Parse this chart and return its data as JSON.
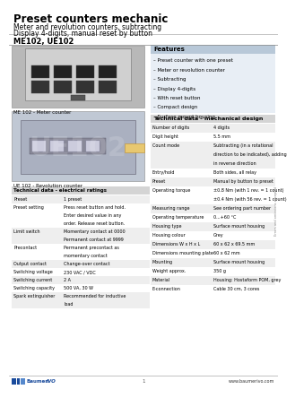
{
  "title": "Preset counters mechanic",
  "subtitle1": "Meter and revolution counters, subtracting",
  "subtitle2": "Display 4-digits, manual reset by button",
  "model_label": "ME102, UE102",
  "image_caption1": "ME 102 - Meter counter",
  "image_caption2": "UE 102 - Revolution counter",
  "features_title": "Features",
  "features": [
    "Preset counter with one preset",
    "Meter or revolution counter",
    "Subtracting",
    "Display 4-digits",
    "With reset button",
    "Compact design",
    "Surface mount housing"
  ],
  "tech_mech_title": "Technical data - mechanical design",
  "tech_mech_rows": [
    [
      "Number of digits",
      "4 digits"
    ],
    [
      "Digit height",
      "5.5 mm"
    ],
    [
      "Count mode",
      "Subtracting (in a rotational\ndirection to be indicated), adding\nin reverse direction"
    ],
    [
      "Entry/hold",
      "Both sides, all relay"
    ],
    [
      "Preset",
      "Manual by button to preset"
    ],
    [
      "Operating torque",
      "±0.8 Nm (with 1 rev. = 1 count)\n±0.4 Nm (with 56 rev. = 1 count)"
    ],
    [
      "Measuring range",
      "See ordering part number"
    ],
    [
      "Operating temperature",
      "0...+60 °C"
    ],
    [
      "Housing type",
      "Surface mount housing"
    ],
    [
      "Housing colour",
      "Grey"
    ],
    [
      "Dimensions W x H x L",
      "60 x 62 x 69.5 mm"
    ],
    [
      "Dimensions mounting plate",
      "60 x 62 mm"
    ],
    [
      "Mounting",
      "Surface mount housing"
    ],
    [
      "Weight approx.",
      "350 g"
    ],
    [
      "Material",
      "Housing: Hostaform POM, grey"
    ],
    [
      "E-connection",
      "Cable 30 cm, 3 cores"
    ]
  ],
  "tech_elec_title": "Technical data - electrical ratings",
  "tech_elec_rows": [
    [
      "Preset",
      "1 preset"
    ],
    [
      "Preset setting",
      "Press reset button and hold.\nEnter desired value in any\norder. Release reset button."
    ],
    [
      "Limit switch",
      "Momentary contact at 0000\nPermanent contact at 9999"
    ],
    [
      "Precontact",
      "Permanent precontact as\nmomentary contact"
    ],
    [
      "Output contact",
      "Change-over contact"
    ],
    [
      "Switching voltage",
      "230 VAC / VDC"
    ],
    [
      "Switching current",
      "2 A"
    ],
    [
      "Switching capacity",
      "500 VA, 30 W"
    ],
    [
      "Spark extinguisher",
      "Recommended for inductive\nload"
    ]
  ],
  "footer_page": "1",
  "footer_url": "www.baumerivo.com",
  "bg_color": "#ffffff",
  "gray_header": "#d4d4d4",
  "alt_row_bg": "#eeeeee",
  "blue_color": "#1a4b9c",
  "light_blue": "#5588cc",
  "text_dark": "#000000",
  "text_gray": "#444444",
  "features_bg": "#e8eef5",
  "features_title_bg": "#b8c8d8"
}
